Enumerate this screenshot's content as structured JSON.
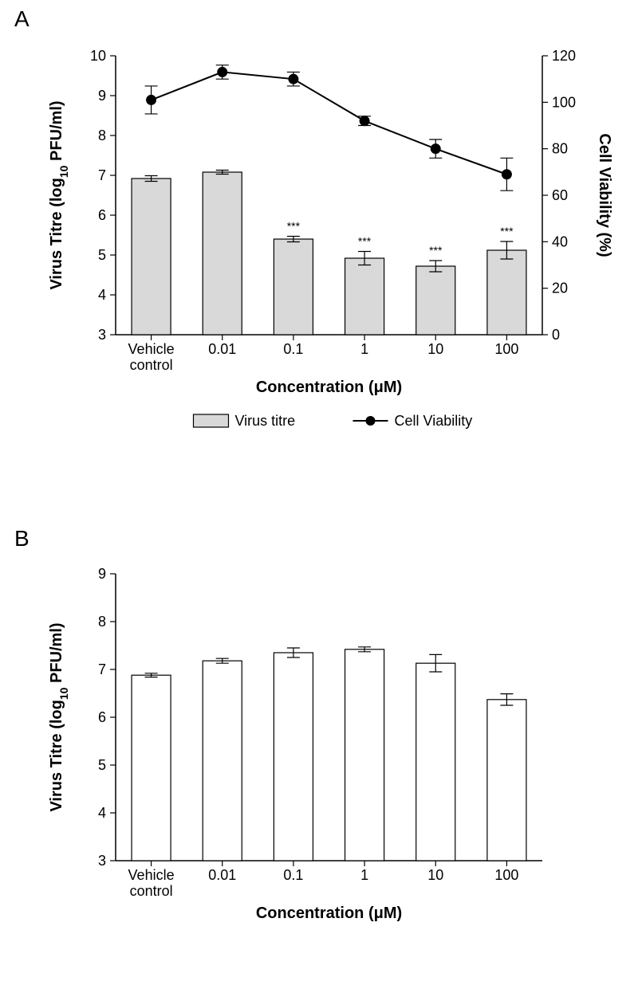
{
  "figure": {
    "background_color": "#ffffff",
    "panel_font_size": 28,
    "panel_label_color": "#000000"
  },
  "panelA": {
    "label": "A",
    "xaxis": {
      "title": "Concentration (μM)",
      "categories": [
        "Vehicle\ncontrol",
        "0.01",
        "0.1",
        "1",
        "10",
        "100"
      ],
      "tick_fontsize": 18,
      "title_fontsize": 20,
      "title_weight": "bold",
      "tick_color": "#000000"
    },
    "yaxis_left": {
      "title": "Virus Titre (log",
      "title_sub": "10",
      "title_suffix": " PFU/ml)",
      "min": 3,
      "max": 10,
      "step": 1,
      "tick_fontsize": 18,
      "title_fontsize": 20,
      "title_weight": "bold"
    },
    "yaxis_right": {
      "title": "Cell Viability (%)",
      "min": 0,
      "max": 120,
      "step": 20,
      "tick_fontsize": 18,
      "title_fontsize": 20,
      "title_weight": "bold"
    },
    "bars": {
      "series_name": "Virus titre",
      "fill": "#d9d9d9",
      "stroke": "#000000",
      "stroke_width": 1.2,
      "width_fraction": 0.55,
      "values": [
        6.92,
        7.08,
        5.4,
        4.92,
        4.72,
        5.12
      ],
      "err": [
        0.07,
        0.05,
        0.07,
        0.17,
        0.14,
        0.22
      ],
      "sig": [
        "",
        "",
        "***",
        "***",
        "***",
        "***"
      ],
      "sig_fontsize": 14
    },
    "line": {
      "series_name": "Cell Viability",
      "color": "#000000",
      "marker_fill": "#000000",
      "marker_stroke": "#000000",
      "marker_radius": 6,
      "line_width": 2,
      "values": [
        101,
        113,
        110,
        92,
        80,
        69
      ],
      "err": [
        6,
        3,
        3,
        2,
        4,
        7
      ]
    },
    "legend": {
      "items": [
        {
          "type": "bar",
          "label": "Virus titre"
        },
        {
          "type": "line",
          "label": "Cell Viability"
        }
      ],
      "fontsize": 18
    }
  },
  "panelB": {
    "label": "B",
    "xaxis": {
      "title": "Concentration (μM)",
      "categories": [
        "Vehicle\ncontrol",
        "0.01",
        "0.1",
        "1",
        "10",
        "100"
      ],
      "tick_fontsize": 18,
      "title_fontsize": 20,
      "title_weight": "bold"
    },
    "yaxis": {
      "title": "Virus Titre (log",
      "title_sub": "10",
      "title_suffix": " PFU/ml)",
      "min": 3,
      "max": 9,
      "step": 1,
      "tick_fontsize": 18,
      "title_fontsize": 20,
      "title_weight": "bold"
    },
    "bars": {
      "fill": "#ffffff",
      "stroke": "#000000",
      "stroke_width": 1.2,
      "width_fraction": 0.55,
      "values": [
        6.88,
        7.18,
        7.35,
        7.42,
        7.13,
        6.37
      ],
      "err": [
        0.04,
        0.05,
        0.1,
        0.05,
        0.18,
        0.12
      ]
    }
  }
}
